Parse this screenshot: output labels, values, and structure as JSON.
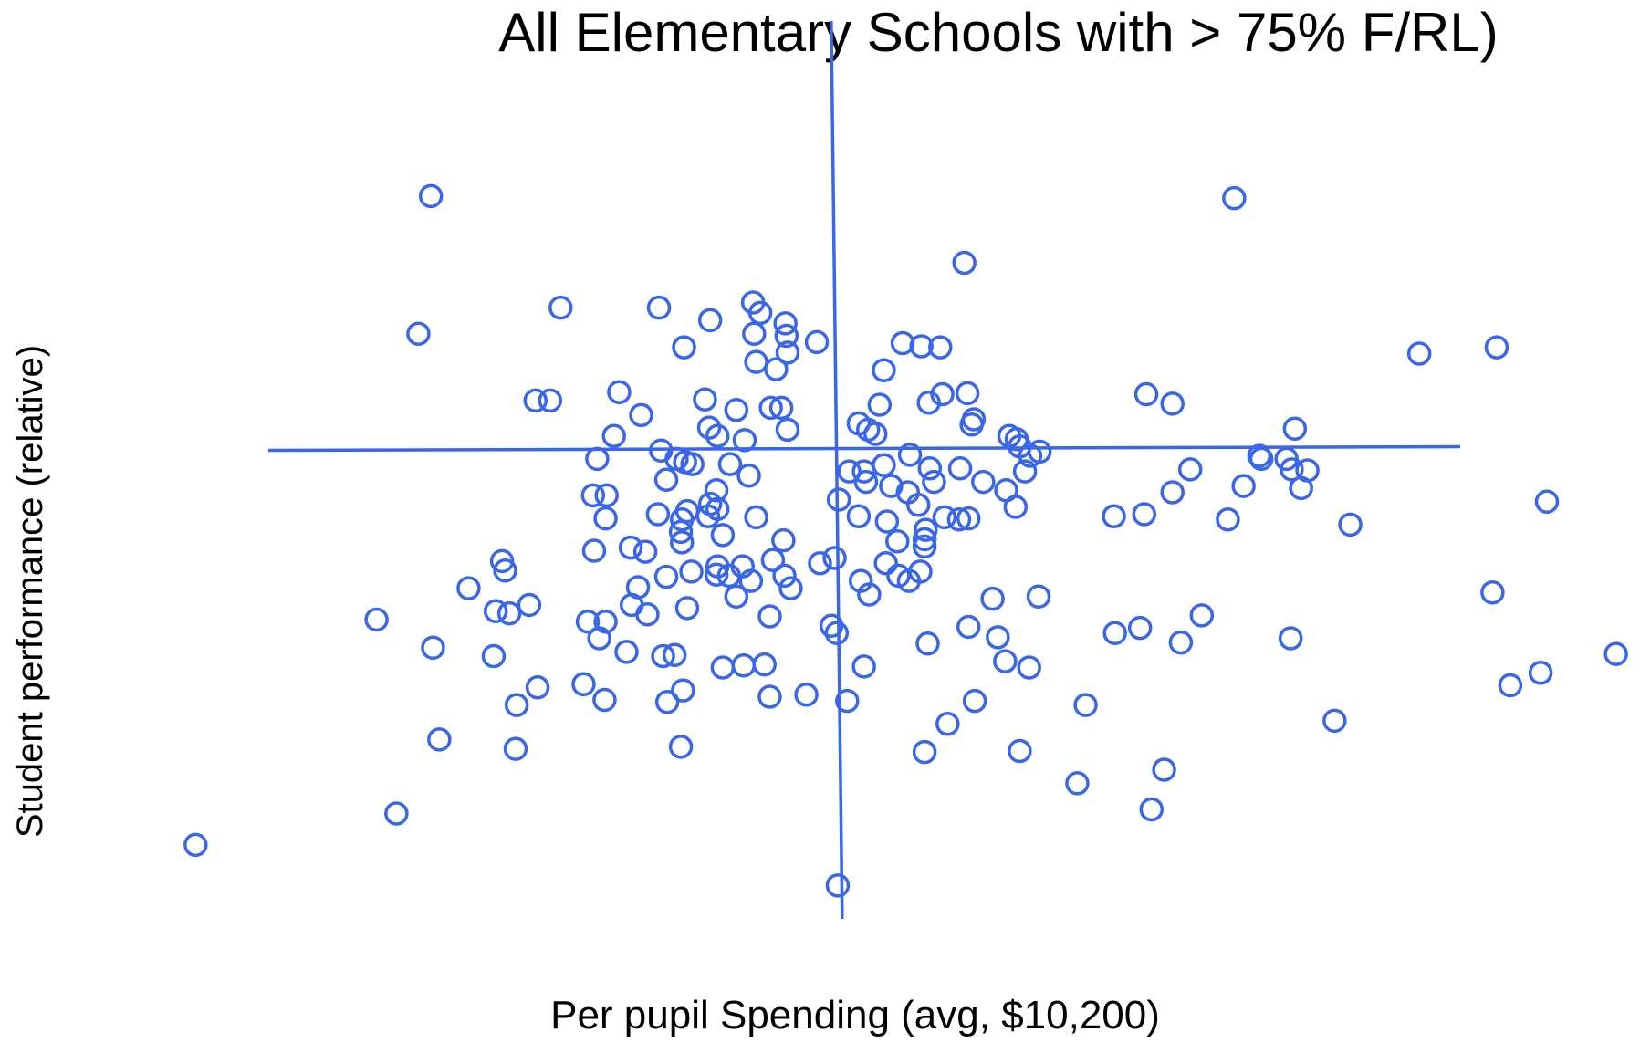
{
  "chart_data": {
    "type": "scatter",
    "title": "All Elementary Schools with > 75% F/RL)",
    "x_label": "Per pupil Spending (avg, $10,200)",
    "y_label": "Student performance (relative)",
    "color": "#3a66e8",
    "xlim": [
      -80,
      76.8
    ],
    "ylim": [
      -57,
      43
    ],
    "vline": 0,
    "hline": 0,
    "x": [
      -38.8,
      38,
      12.2,
      -26.4,
      -17,
      -8,
      -7.3,
      -12.1,
      -4.9,
      -40,
      -7.9,
      -4.8,
      -1.9,
      -14.6,
      -4.7,
      6.3,
      8.1,
      9.9,
      55.7,
      63.1,
      -7.7,
      -5.8,
      4.5,
      -20.8,
      -28.8,
      -27.4,
      -12.6,
      -9.6,
      -6.3,
      -5.3,
      4.1,
      8.8,
      10.1,
      12.5,
      29.6,
      32.1,
      -18.7,
      13.1,
      12.9,
      2.1,
      3,
      3.7,
      -4.7,
      -12.2,
      -11.4,
      -8.8,
      -21.3,
      16.5,
      17.2,
      17.5,
      43.8,
      -16.8,
      -15.3,
      -14.5,
      -13.8,
      -22.9,
      -10.2,
      7,
      18.5,
      19.4,
      40.4,
      40.6,
      43,
      1.2,
      2.6,
      4.5,
      8.9,
      11.8,
      18,
      33.8,
      43.5,
      45,
      -16.3,
      -8.4,
      2.8,
      5.2,
      9.3,
      14,
      16.2,
      38.9,
      44.4,
      -11.5,
      -23.3,
      -22,
      -12.1,
      -11.4,
      6.8,
      7.8,
      32.1,
      67.9,
      0.2,
      17.1,
      -17.1,
      -22.1,
      -14.3,
      -14.8,
      -12.3,
      -7.7,
      2.1,
      4.8,
      10.3,
      11.7,
      12.6,
      26.5,
      29.4,
      37.4,
      49.1,
      -14.9,
      -10.9,
      8.5,
      8.4,
      8.4,
      -5.1,
      5.8,
      -14.8,
      -23.2,
      -19.7,
      -18.3,
      -6.1,
      -1.6,
      -0.2,
      -32,
      -31.7,
      -11.4,
      -9,
      4.7,
      8,
      -13.9,
      -16.3,
      -11.5,
      -10.3,
      -5,
      -8.2,
      5.9,
      6.9,
      -4.4,
      -35.2,
      -19,
      2.3,
      3.1,
      -9.6,
      -19.6,
      62.7,
      14.9,
      19.3,
      -32.6,
      -31.3,
      -29.4,
      -18.1,
      -14.3,
      -6.4,
      34.9,
      -44,
      -23.8,
      -22.1,
      -0.5,
      0,
      12.6,
      26.6,
      29,
      -22.7,
      15.4,
      32.9,
      43.4,
      8.7,
      -38.6,
      -32.8,
      -20.1,
      -16.6,
      -15.5,
      16.1,
      18.4,
      -10.9,
      -8.9,
      -6.9,
      2.6,
      74.5,
      -24.2,
      -28.6,
      -14.7,
      64.4,
      67.3,
      -30.6,
      -22.2,
      -16.2,
      -6.4,
      -2.9,
      1,
      13.2,
      23.8,
      47.6,
      -38,
      -30.7,
      -14.9,
      10.6,
      8.4,
      17.5,
      31.3,
      23,
      30.1,
      -42.1,
      -61.3,
      0.1
    ],
    "y": [
      24.2,
      24,
      17.8,
      13.5,
      13.5,
      14,
      13,
      12.3,
      12,
      11,
      11,
      10.8,
      10.2,
      9.7,
      9.2,
      10.1,
      9.8,
      9.7,
      9.1,
      9.7,
      8.3,
      7.6,
      7.5,
      5.4,
      4.6,
      4.6,
      4.7,
      3.7,
      3.9,
      3.9,
      4.2,
      4.4,
      5.2,
      5.3,
      5.2,
      4.3,
      3.2,
      2.8,
      2.3,
      2.4,
      1.8,
      1.4,
      1.8,
      2,
      1.2,
      0.8,
      1.2,
      1.2,
      0.9,
      0.2,
      1.9,
      -0.2,
      -1,
      -1.3,
      -1.5,
      -1,
      -1.5,
      -0.6,
      -0.7,
      -0.3,
      -0.7,
      -1,
      -1,
      -2.2,
      -2.2,
      -1.6,
      -1.9,
      -1.9,
      -2.2,
      -2,
      -2,
      -2.1,
      -3,
      -2.6,
      -3.2,
      -3.6,
      -3.2,
      -3.2,
      -4,
      -3.6,
      -3.8,
      -4,
      -4.5,
      -4.5,
      -5.3,
      -5.8,
      -4.2,
      -5.4,
      -4.2,
      -5.1,
      -4.9,
      -5.6,
      -6.3,
      -6.7,
      -6,
      -6.8,
      -6.5,
      -6.6,
      -6.5,
      -7,
      -6.6,
      -6.8,
      -6.7,
      -6.5,
      -6.3,
      -6.8,
      -7.3,
      -8,
      -8.3,
      -7.8,
      -8.7,
      -9.4,
      -8.8,
      -8.9,
      -9,
      -9.8,
      -9.5,
      -9.9,
      -10.7,
      -11,
      -10.5,
      -10.8,
      -11.7,
      -11.3,
      -11.3,
      -11,
      -11.8,
      -11.8,
      -12.3,
      -12.1,
      -12.2,
      -12.2,
      -12.7,
      -12.2,
      -12.7,
      -13.4,
      -13.4,
      -13.3,
      -12.7,
      -14,
      -14.2,
      -15,
      -13.8,
      -14.4,
      -14.2,
      -15.6,
      -15.8,
      -15,
      -15.9,
      -15.3,
      -16.1,
      -16,
      -16.4,
      -16.6,
      -16.6,
      -17,
      -17.7,
      -17.1,
      -17.7,
      -17.2,
      -18.2,
      -18.1,
      -18.6,
      -18.2,
      -18.7,
      -19.1,
      -19.9,
      -19.5,
      -19.9,
      -19.8,
      -20.4,
      -21,
      -21,
      -20.8,
      -20.7,
      -20.9,
      -19.7,
      -22.6,
      -22.9,
      -23.2,
      -22.7,
      -21.5,
      -24.6,
      -24.1,
      -24.3,
      -23.8,
      -23.6,
      -24.2,
      -24.2,
      -24.6,
      -26.1,
      -27.9,
      -28.8,
      -28.6,
      -26.4,
      -29.1,
      -29,
      -30.8,
      -32.1,
      -34.6,
      -35,
      -38,
      -41.9
    ]
  }
}
